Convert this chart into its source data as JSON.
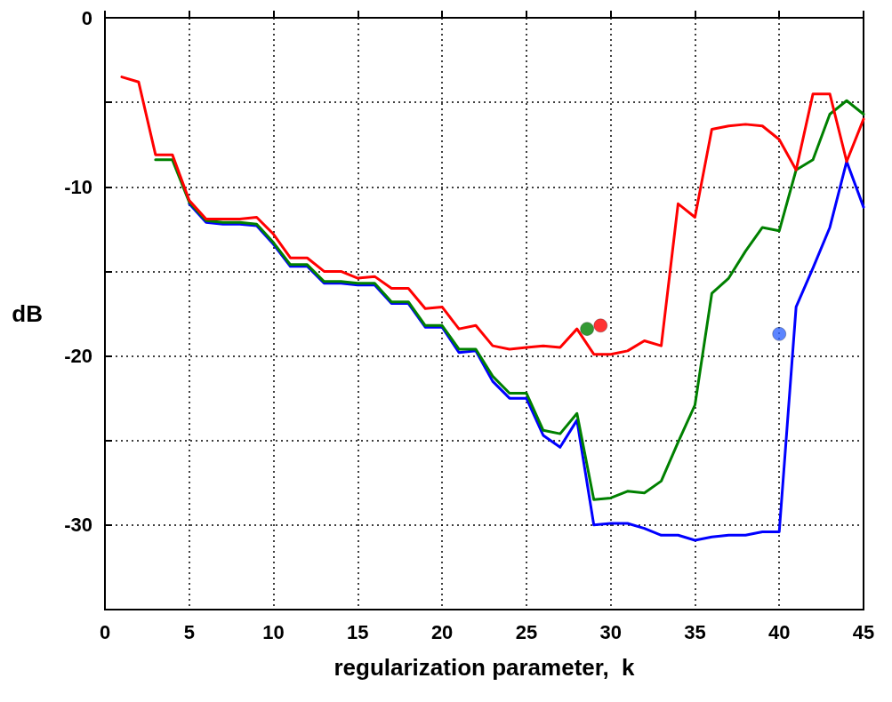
{
  "chart_data": {
    "type": "line",
    "xlabel": "regularization parameter,  k",
    "ylabel": "dB",
    "xlim": [
      0,
      45
    ],
    "xticks": [
      0,
      5,
      10,
      15,
      20,
      25,
      30,
      35,
      40,
      45
    ],
    "ylim": [
      -35,
      0
    ],
    "yticks": [
      0,
      {
        "value": -5,
        "label": null
      },
      -10,
      {
        "value": -15,
        "label": null
      },
      -20,
      {
        "value": -25,
        "label": null
      },
      -30,
      {
        "value": -35,
        "label": null
      }
    ],
    "grid": true,
    "marker": "none",
    "line_style": "solid",
    "x": [
      1,
      2,
      3,
      4,
      5,
      6,
      7,
      8,
      9,
      10,
      11,
      12,
      13,
      14,
      15,
      16,
      17,
      18,
      19,
      20,
      21,
      22,
      23,
      24,
      25,
      26,
      27,
      28,
      29,
      30,
      31,
      32,
      33,
      34,
      35,
      36,
      37,
      38,
      39,
      40,
      41,
      42,
      43,
      44,
      45
    ],
    "series": [
      {
        "color": "#0000ff",
        "values": [
          null,
          null,
          null,
          null,
          -11.0,
          -12.1,
          -12.2,
          -12.2,
          -12.3,
          -13.4,
          -14.7,
          -14.7,
          -15.7,
          -15.7,
          -15.8,
          -15.8,
          -16.9,
          -16.9,
          -18.3,
          -18.3,
          -19.8,
          -19.7,
          -21.5,
          -22.5,
          -22.5,
          -24.7,
          -25.4,
          -23.8,
          -30.0,
          -29.9,
          -29.9,
          -30.2,
          -30.6,
          -30.6,
          -30.9,
          -30.7,
          -30.6,
          -30.6,
          -30.4,
          -30.4,
          -17.1,
          -14.8,
          -12.4,
          -8.5,
          -11.2
        ]
      },
      {
        "color": "#008000",
        "values": [
          null,
          null,
          -8.4,
          -8.4,
          -10.9,
          -12.0,
          -12.1,
          -12.1,
          -12.2,
          -13.3,
          -14.6,
          -14.6,
          -15.6,
          -15.6,
          -15.7,
          -15.7,
          -16.8,
          -16.8,
          -18.2,
          -18.2,
          -19.6,
          -19.6,
          -21.2,
          -22.2,
          -22.2,
          -24.4,
          -24.6,
          -23.4,
          -28.5,
          -28.4,
          -28.0,
          -28.1,
          -27.4,
          -25.1,
          -22.9,
          -16.3,
          -15.4,
          -13.8,
          -12.4,
          -12.6,
          -9.0,
          -8.4,
          -5.7,
          -4.9,
          -5.7
        ]
      },
      {
        "color": "#ff0000",
        "values": [
          -3.5,
          -3.8,
          -8.1,
          -8.1,
          -10.8,
          -11.9,
          -11.9,
          -11.9,
          -11.8,
          -12.8,
          -14.2,
          -14.2,
          -15.0,
          -15.0,
          -15.4,
          -15.3,
          -16.0,
          -16.0,
          -17.2,
          -17.1,
          -18.4,
          -18.2,
          -19.4,
          -19.6,
          -19.5,
          -19.4,
          -19.5,
          -18.4,
          -19.9,
          -19.9,
          -19.7,
          -19.1,
          -19.4,
          -11.0,
          -11.8,
          -6.6,
          -6.4,
          -6.3,
          -6.4,
          -7.2,
          -9.0,
          -4.5,
          -4.5,
          -8.5,
          -6.0
        ]
      },
      {
        "type": "scatter",
        "marker": "circle",
        "color": "#008000",
        "x": [
          28.6
        ],
        "values": [
          -18.4
        ]
      },
      {
        "type": "scatter",
        "marker": "circle",
        "color": "#ff0000",
        "x": [
          29.4
        ],
        "values": [
          -18.2
        ]
      },
      {
        "type": "scatter",
        "marker": "circle",
        "color": "#3366ff",
        "x": [
          40
        ],
        "values": [
          -18.7
        ]
      }
    ]
  }
}
